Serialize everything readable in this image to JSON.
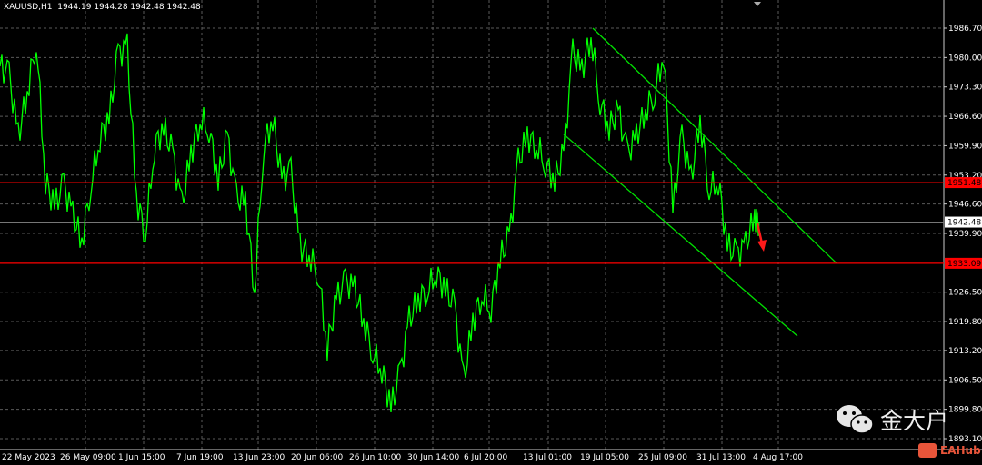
{
  "header": {
    "symbol": "XAUUSD,H1",
    "open": "1944.19",
    "high": "1944.28",
    "low": "1942.48",
    "close": "1942.48"
  },
  "watermark": {
    "text": "金大户",
    "brand": "EAHub"
  },
  "colors": {
    "background": "#000000",
    "price": "#00ff00",
    "channel": "#00e000",
    "level": "#ff0000",
    "grid": "#5a5a5a",
    "arrow": "#ff1a1a"
  },
  "chart_data": {
    "type": "line",
    "title": "",
    "xlabel": "",
    "ylabel": "",
    "x_ticks": [
      "22 May 2023",
      "26 May 09:00",
      "1 Jun 15:00",
      "7 Jun 19:00",
      "13 Jun 23:00",
      "20 Jun 06:00",
      "26 Jun 10:00",
      "30 Jun 14:00",
      "6 Jul 20:00",
      "13 Jul 01:00",
      "19 Jul 05:00",
      "25 Jul 09:00",
      "31 Jul 13:00",
      "4 Aug 17:00"
    ],
    "y_ticks": [
      "1986.70",
      "1980.00",
      "1973.30",
      "1966.60",
      "1959.90",
      "1953.20",
      "1946.60",
      "1939.90",
      "1926.50",
      "1919.80",
      "1913.20",
      "1906.50",
      "1899.80",
      "1893.10"
    ],
    "ylim": [
      1888.0,
      1993.0
    ],
    "grid": true,
    "series": [
      {
        "values": [
          1978,
          1976,
          1962,
          1972,
          1984,
          1952,
          1946,
          1951,
          1944,
          1938,
          1951,
          1962,
          1966,
          1981,
          1982,
          1948,
          1940,
          1960,
          1964,
          1958,
          1946,
          1958,
          1966,
          1964,
          1952,
          1962,
          1948,
          1947,
          1927,
          1960,
          1966,
          1952,
          1954,
          1937,
          1935,
          1931,
          1914,
          1925,
          1929,
          1927,
          1920,
          1913,
          1909,
          1900,
          1908,
          1920,
          1925,
          1927,
          1931,
          1927,
          1923,
          1906,
          1920,
          1926,
          1923,
          1934,
          1939,
          1956,
          1962,
          1960,
          1956,
          1952,
          1958,
          1981,
          1977,
          1985,
          1970,
          1964,
          1968,
          1958,
          1962,
          1968,
          1972,
          1981,
          1945,
          1962,
          1952,
          1966,
          1950,
          1952,
          1937,
          1935,
          1937,
          1944,
          1942.48
        ]
      }
    ],
    "levels": [
      {
        "price": 1951.48,
        "label": "1951.48"
      },
      {
        "price": 1933.09,
        "label": "1933.09"
      }
    ],
    "current_price": {
      "price": 1942.48,
      "label": "1942.48"
    },
    "channel": {
      "upper": [
        "19 Jul 05:00 1986.7",
        "1933.1"
      ],
      "lower": [
        "1962.5",
        "1916.5"
      ]
    },
    "annotation": "red down arrow near 4 Aug 17:00"
  }
}
